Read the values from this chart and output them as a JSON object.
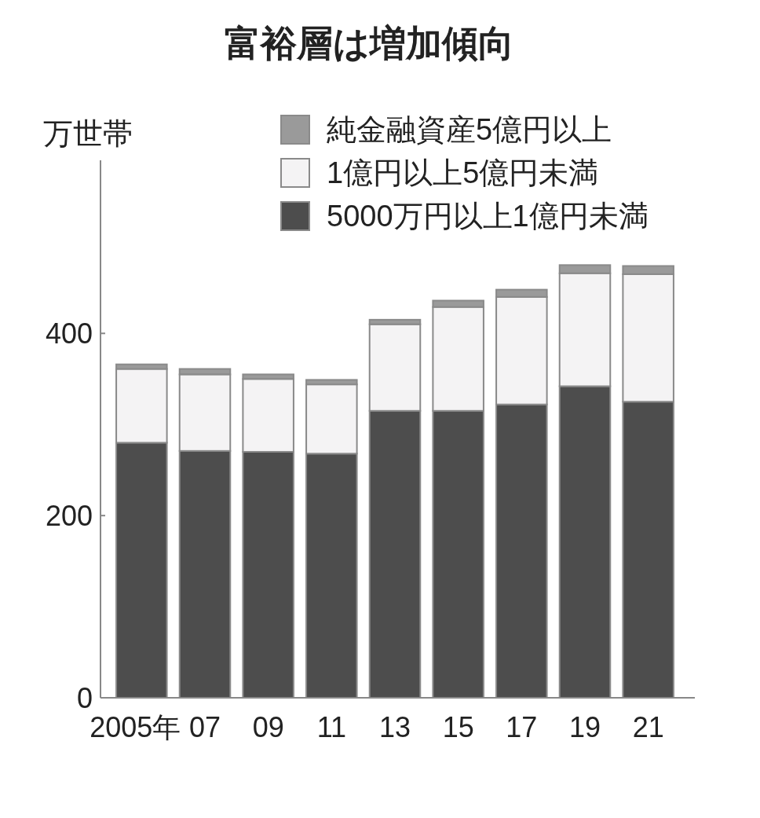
{
  "chart_data": {
    "type": "bar",
    "title": "富裕層は増加傾向",
    "ylabel": "万世帯",
    "categories": [
      "2005年",
      "07",
      "09",
      "11",
      "13",
      "15",
      "17",
      "19",
      "21"
    ],
    "stacked": true,
    "series": [
      {
        "name": "5000万円以上1億円未満",
        "color": "#4d4d4d",
        "values": [
          280,
          271,
          270,
          268,
          315,
          315,
          322,
          342,
          325
        ]
      },
      {
        "name": "1億円以上5億円未満",
        "color": "#f4f3f4",
        "values": [
          81,
          84,
          80,
          76,
          95,
          114,
          118,
          124,
          140
        ]
      },
      {
        "name": "純金融資産5億円以上",
        "color": "#9a9a9a",
        "values": [
          5,
          6,
          5,
          5,
          5,
          7,
          8,
          9,
          9
        ]
      }
    ],
    "ylim": [
      0,
      590
    ],
    "yticks": [
      0,
      200,
      400
    ],
    "legend": "top right"
  }
}
